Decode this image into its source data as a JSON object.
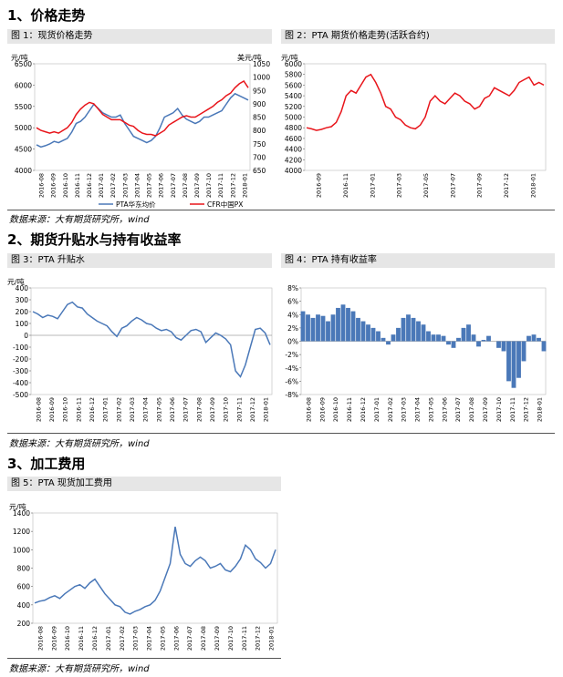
{
  "sections": [
    {
      "title": "1、价格走势"
    },
    {
      "title": "2、期货升贴水与持有收益率"
    },
    {
      "title": "3、加工费用"
    }
  ],
  "source_text": "数据来源：大有期货研究所，wind",
  "colors": {
    "blue": "#4a78b8",
    "red": "#e8151b"
  },
  "chart_data": [
    {
      "id": "fig1",
      "type": "line",
      "title": "图 1：现货价格走势",
      "ylabel": "元/吨",
      "ylabel_right": "美元/吨",
      "ylim": [
        4000,
        6500
      ],
      "yticks": [
        4000,
        4500,
        5000,
        5500,
        6000,
        6500
      ],
      "ylim_right": [
        650,
        1050
      ],
      "yticks_right": [
        650,
        700,
        750,
        800,
        850,
        900,
        950,
        1000,
        1050
      ],
      "xticks": [
        "2016-08",
        "2016-09",
        "2016-10",
        "2016-11",
        "2016-12",
        "2017-01",
        "2017-02",
        "2017-03",
        "2017-04",
        "2017-05",
        "2017-06",
        "2017-07",
        "2017-08",
        "2017-09",
        "2017-10",
        "2017-11",
        "2017-12",
        "2018-01"
      ],
      "legend_position": "bottom",
      "series": [
        {
          "name": "PTA华东均价",
          "axis": "left",
          "color": "#4a78b8",
          "values": [
            4600,
            4550,
            4580,
            4620,
            4680,
            4650,
            4700,
            4750,
            4900,
            5100,
            5150,
            5250,
            5400,
            5550,
            5450,
            5350,
            5300,
            5250,
            5250,
            5300,
            5100,
            4950,
            4800,
            4750,
            4700,
            4650,
            4700,
            4800,
            5000,
            5250,
            5300,
            5350,
            5450,
            5300,
            5200,
            5150,
            5100,
            5150,
            5250,
            5250,
            5300,
            5350,
            5400,
            5550,
            5700,
            5800,
            5750,
            5700,
            5650
          ]
        },
        {
          "name": "CFR中国PX",
          "axis": "right",
          "color": "#e8151b",
          "values": [
            810,
            800,
            795,
            790,
            795,
            790,
            800,
            810,
            830,
            860,
            880,
            895,
            905,
            900,
            880,
            860,
            850,
            840,
            840,
            840,
            830,
            820,
            815,
            800,
            790,
            785,
            785,
            780,
            790,
            800,
            820,
            830,
            840,
            850,
            855,
            850,
            850,
            860,
            870,
            880,
            890,
            905,
            915,
            930,
            940,
            960,
            975,
            985,
            960
          ]
        }
      ]
    },
    {
      "id": "fig2",
      "type": "line",
      "title": "图 2：PTA 期货价格走势(活跃合约)",
      "ylabel": "元/吨",
      "ylim": [
        4000,
        6000
      ],
      "yticks": [
        4000,
        4200,
        4400,
        4600,
        4800,
        5000,
        5200,
        5400,
        5600,
        5800,
        6000
      ],
      "xticks": [
        "2016-09",
        "2016-11",
        "2017-01",
        "2017-03",
        "2017-05",
        "2017-07",
        "2017-09",
        "2017-12",
        "2018-01"
      ],
      "series": [
        {
          "name": "",
          "color": "#e8151b",
          "values": [
            4800,
            4780,
            4750,
            4770,
            4800,
            4820,
            4900,
            5100,
            5400,
            5500,
            5450,
            5600,
            5750,
            5800,
            5650,
            5450,
            5200,
            5150,
            5000,
            4950,
            4850,
            4800,
            4780,
            4850,
            5000,
            5300,
            5400,
            5300,
            5250,
            5350,
            5450,
            5400,
            5300,
            5250,
            5150,
            5200,
            5350,
            5400,
            5550,
            5500,
            5450,
            5400,
            5500,
            5650,
            5700,
            5750,
            5600,
            5650,
            5600
          ]
        }
      ]
    },
    {
      "id": "fig3",
      "type": "line",
      "title": "图 3：PTA 升贴水",
      "ylabel": "元/吨",
      "ylim": [
        -500,
        400
      ],
      "yticks": [
        -500,
        -400,
        -300,
        -200,
        -100,
        0,
        100,
        200,
        300,
        400
      ],
      "xticks": [
        "2016-08",
        "2016-09",
        "2016-10",
        "2016-11",
        "2016-12",
        "2017-01",
        "2017-02",
        "2017-03",
        "2017-04",
        "2017-05",
        "2017-06",
        "2017-07",
        "2017-08",
        "2017-09",
        "2017-10",
        "2017-11",
        "2017-12",
        "2018-01"
      ],
      "series": [
        {
          "name": "",
          "color": "#4a78b8",
          "values": [
            200,
            180,
            150,
            170,
            160,
            140,
            200,
            260,
            280,
            240,
            230,
            180,
            150,
            120,
            100,
            80,
            30,
            -10,
            60,
            80,
            120,
            150,
            130,
            100,
            90,
            60,
            40,
            50,
            30,
            -20,
            -40,
            0,
            40,
            50,
            30,
            -60,
            -20,
            20,
            0,
            -30,
            -80,
            -300,
            -350,
            -250,
            -100,
            50,
            60,
            20,
            -80
          ]
        }
      ]
    },
    {
      "id": "fig4",
      "type": "bar",
      "title": "图 4：PTA 持有收益率",
      "ylim": [
        -8,
        8
      ],
      "yticks": [
        "-8%",
        "-6%",
        "-4%",
        "-2%",
        "0%",
        "2%",
        "4%",
        "6%",
        "8%"
      ],
      "xticks": [
        "2016-08",
        "2016-09",
        "2016-10",
        "2016-11",
        "2016-12",
        "2017-01",
        "2017-02",
        "2017-03",
        "2017-04",
        "2017-05",
        "2017-06",
        "2017-07",
        "2017-08",
        "2017-09",
        "2017-10",
        "2017-11",
        "2017-12",
        "2018-01"
      ],
      "series": [
        {
          "name": "",
          "color": "#4a78b8",
          "values": [
            4.5,
            4,
            3.5,
            4,
            3.8,
            3,
            4,
            5,
            5.5,
            5,
            4.5,
            3.5,
            3,
            2.5,
            2,
            1.5,
            0.5,
            -0.5,
            1,
            2,
            3.5,
            4,
            3.5,
            3,
            2.5,
            1.5,
            1,
            1,
            0.8,
            -0.5,
            -1,
            0.5,
            2,
            2.5,
            1,
            -0.8,
            0.2,
            0.8,
            0,
            -1,
            -1.5,
            -6,
            -7,
            -5.5,
            -3,
            0.8,
            1,
            0.5,
            -1.5
          ]
        }
      ]
    },
    {
      "id": "fig5",
      "type": "line",
      "title": "图 5：PTA 现货加工费用",
      "ylabel": "元/吨",
      "ylim": [
        200,
        1400
      ],
      "yticks": [
        200,
        400,
        600,
        800,
        1000,
        1200,
        1400
      ],
      "xticks": [
        "2016-08",
        "2016-09",
        "2016-10",
        "2016-11",
        "2016-12",
        "2017-01",
        "2017-02",
        "2017-03",
        "2017-04",
        "2017-05",
        "2017-06",
        "2017-07",
        "2017-08",
        "2017-09",
        "2017-10",
        "2017-11",
        "2017-12",
        "2018-01"
      ],
      "series": [
        {
          "name": "",
          "color": "#4a78b8",
          "values": [
            420,
            440,
            450,
            480,
            500,
            470,
            520,
            560,
            600,
            620,
            580,
            640,
            680,
            600,
            520,
            460,
            400,
            380,
            320,
            300,
            330,
            350,
            380,
            400,
            450,
            550,
            700,
            850,
            1250,
            950,
            850,
            820,
            880,
            920,
            880,
            800,
            820,
            850,
            780,
            760,
            820,
            900,
            1050,
            1000,
            900,
            860,
            800,
            850,
            1000
          ]
        }
      ]
    }
  ]
}
